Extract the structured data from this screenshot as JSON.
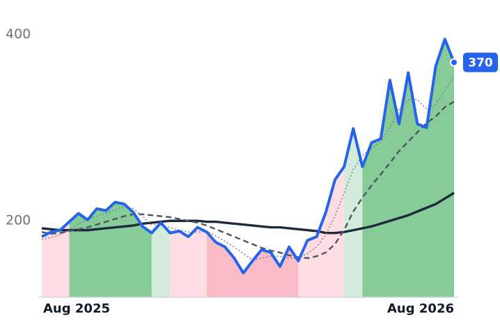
{
  "chart_data": {
    "type": "line",
    "categories": [
      "Aug 2025",
      null,
      null,
      null,
      null,
      null,
      null,
      null,
      null,
      null,
      null,
      null,
      null,
      null,
      null,
      null,
      null,
      null,
      null,
      null,
      null,
      null,
      null,
      null,
      null,
      null,
      null,
      null,
      null,
      null,
      null,
      null,
      null,
      null,
      null,
      null,
      null,
      null,
      null,
      null,
      null,
      null,
      null,
      null,
      null,
      "Aug 2026"
    ],
    "series": [
      {
        "color": "#2563eb",
        "style": "solid",
        "values": [
          183,
          188,
          190,
          199,
          208,
          201,
          213,
          211,
          220,
          218,
          209,
          194,
          187,
          198,
          187,
          189,
          183,
          193,
          188,
          177,
          172,
          160,
          144,
          157,
          169,
          166,
          151,
          172,
          157,
          179,
          183,
          209,
          244,
          258,
          299,
          258,
          284,
          288,
          351,
          304,
          359,
          304,
          300,
          366,
          395,
          370
        ]
      },
      {
        "color": "#7b8494",
        "style": "dotted",
        "values": [
          180,
          182,
          185,
          190,
          197,
          201,
          205,
          208,
          212,
          215,
          213,
          205,
          196,
          195,
          193,
          190,
          188,
          188,
          189,
          184,
          178,
          172,
          165,
          158,
          160,
          162,
          162,
          160,
          160,
          165,
          172,
          185,
          205,
          230,
          255,
          270,
          278,
          285,
          300,
          320,
          330,
          330,
          320,
          325,
          340,
          355
        ]
      },
      {
        "color": "#4b5563",
        "style": "dashed",
        "values": [
          188,
          186,
          187,
          189,
          191,
          193,
          196,
          199,
          202,
          205,
          207,
          207,
          206,
          205,
          204,
          202,
          200,
          198,
          195,
          191,
          187,
          183,
          179,
          175,
          171,
          168,
          166,
          163,
          161,
          160,
          162,
          166,
          175,
          190,
          210,
          225,
          238,
          250,
          262,
          275,
          285,
          295,
          305,
          312,
          322,
          328
        ]
      },
      {
        "color": "#1e293b",
        "style": "solid-thick",
        "values": [
          192,
          191,
          190,
          190,
          190,
          190,
          191,
          192,
          193,
          194,
          195,
          197,
          198,
          199,
          200,
          200,
          200,
          200,
          199,
          199,
          198,
          197,
          196,
          195,
          194,
          193,
          193,
          192,
          191,
          190,
          189,
          187,
          187,
          188,
          190,
          192,
          194,
          197,
          200,
          203,
          206,
          210,
          214,
          218,
          224,
          230
        ]
      }
    ],
    "regions": [
      {
        "from": 0,
        "to": 3,
        "color": "#fddde3"
      },
      {
        "from": 3,
        "to": 12,
        "color": "#86cb98"
      },
      {
        "from": 12,
        "to": 14,
        "color": "#d3ecd9"
      },
      {
        "from": 14,
        "to": 18,
        "color": "#fddde3"
      },
      {
        "from": 18,
        "to": 28,
        "color": "#f9bcc6"
      },
      {
        "from": 28,
        "to": 33,
        "color": "#fddde3"
      },
      {
        "from": 33,
        "to": 35,
        "color": "#d3ecd9"
      },
      {
        "from": 35,
        "to": 45,
        "color": "#86cb98"
      }
    ],
    "ylim": [
      118,
      437
    ],
    "yticks": [
      200,
      400
    ],
    "grid": false
  }
}
